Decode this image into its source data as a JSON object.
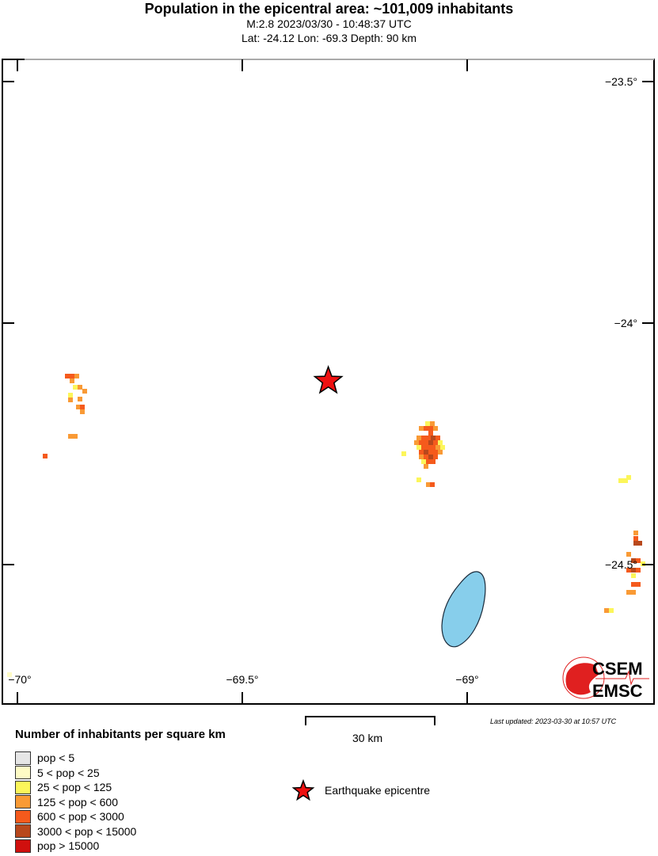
{
  "header": {
    "title": "Population in the epicentral area: ~101,009 inhabitants",
    "subtitle": "M:2.8 2023/03/30 - 10:48:37 UTC",
    "location": "Lat: -24.12 Lon: -69.3 Depth: 90 km"
  },
  "map": {
    "epicenter": {
      "lat": -24.12,
      "lon": -69.3,
      "color": "#ee1111"
    },
    "lon_ticks": [
      {
        "value": -70,
        "label": "−70°"
      },
      {
        "value": -69.5,
        "label": "−69.5°"
      },
      {
        "value": -69,
        "label": "−69°"
      }
    ],
    "lat_ticks": [
      {
        "value": -23.5,
        "label": "−23.5°"
      },
      {
        "value": -24,
        "label": "−24°"
      },
      {
        "value": -24.5,
        "label": "−24.5°"
      }
    ],
    "water_color": "#87ceeb",
    "scale_bar": "30 km",
    "logo": {
      "top": "CSEM",
      "bottom": "EMSC",
      "color": "#e02020"
    }
  },
  "legend": {
    "title": "Number of inhabitants per square km",
    "items": [
      {
        "label": "pop < 5",
        "color": "#e6e6e6"
      },
      {
        "label": "5 < pop < 25",
        "color": "#fefbc5"
      },
      {
        "label": "25 < pop < 125",
        "color": "#fcf65a"
      },
      {
        "label": "125 < pop < 600",
        "color": "#f99a35"
      },
      {
        "label": "600 < pop < 3000",
        "color": "#f55a1c"
      },
      {
        "label": "3000 < pop < 15000",
        "color": "#b8481c"
      },
      {
        "label": "pop > 15000",
        "color": "#d0100e"
      }
    ],
    "epicentre_label": "Earthquake epicentre"
  },
  "footer": {
    "last_updated": "Last updated: 2023-03-30 at 10:57 UTC"
  }
}
